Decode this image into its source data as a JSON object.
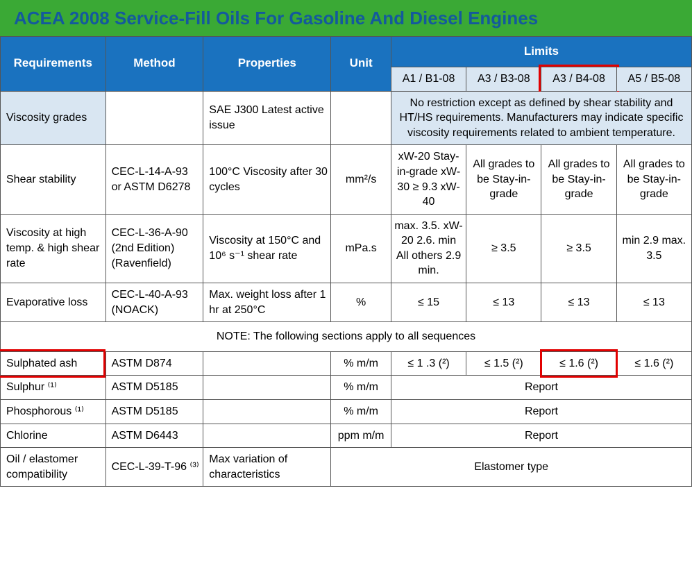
{
  "colors": {
    "title_bg": "#3aa935",
    "title_text": "#145a9c",
    "header_bg": "#1a72bf",
    "sub_bg": "#d9e6f2",
    "body_bg": "#ffffff",
    "highlight": "#e20000"
  },
  "title": "ACEA 2008 Service-Fill Oils For Gasoline And Diesel Engines",
  "columns": {
    "requirements": "Requirements",
    "method": "Method",
    "properties": "Properties",
    "unit": "Unit",
    "limits": "Limits"
  },
  "sub": {
    "a1b1": "A1 / B1-08",
    "a3b3": "A3 / B3-08",
    "a3b4": "A3 / B4-08",
    "a5b5": "A5 / B5-08"
  },
  "rows": {
    "viscosity_grades": {
      "req": "Viscosity grades",
      "method": "",
      "prop": "SAE J300 Latest active issue",
      "unit": "",
      "span": "No restriction except as defined by shear stability and HT/HS requirements. Manufacturers may indicate specific viscosity requirements related to ambient temperature."
    },
    "shear_stability": {
      "req": "Shear stability",
      "method": "CEC-L-14-A-93 or ASTM D6278",
      "prop": "100°C Viscosity after 30 cycles",
      "unit": "mm²/s",
      "l1": "xW-20 Stay-in-grade xW-30 ≥ 9.3 xW-40",
      "l2": "All grades to be Stay-in-grade",
      "l3": "All grades to be Stay-in-grade",
      "l4": "All grades to be Stay-in-grade"
    },
    "viscosity_high": {
      "req": "Viscosity at high temp. & high shear rate",
      "method": "CEC-L-36-A-90 (2nd Edition) (Ravenfield)",
      "prop": "Viscosity at 150°C and 10⁶ s⁻¹ shear rate",
      "unit": "mPa.s",
      "l1": "max. 3.5. xW-20 2.6. min All others 2.9 min.",
      "l2": "≥ 3.5",
      "l3": "≥ 3.5",
      "l4": "min 2.9 max. 3.5"
    },
    "evap_loss": {
      "req": "Evaporative loss",
      "method": "CEC-L-40-A-93 (NOACK)",
      "prop": "Max. weight loss after 1 hr at 250°C",
      "unit": "%",
      "l1": "≤ 15",
      "l2": "≤ 13",
      "l3": "≤ 13",
      "l4": "≤ 13"
    },
    "note": "NOTE: The following sections apply to all sequences",
    "sulphated_ash": {
      "req": "Sulphated ash",
      "method": "ASTM D874",
      "prop": "",
      "unit": "% m/m",
      "l1": "≤ 1 .3 (²)",
      "l2": "≤ 1.5 (²)",
      "l3": "≤ 1.6 (²)",
      "l4": "≤ 1.6 (²)"
    },
    "sulphur": {
      "req": "Sulphur ⁽¹⁾",
      "method": "ASTM D5185",
      "prop": "",
      "unit": "% m/m",
      "span": "Report"
    },
    "phosphorous": {
      "req": "Phosphorous ⁽¹⁾",
      "method": "ASTM D5185",
      "prop": "",
      "unit": "% m/m",
      "span": "Report"
    },
    "chlorine": {
      "req": "Chlorine",
      "method": "ASTM D6443",
      "prop": "",
      "unit": "ppm m/m",
      "span": "Report"
    },
    "elastomer": {
      "req": "Oil / elastomer compatibility",
      "method": "CEC-L-39-T-96 ⁽³⁾",
      "prop": "Max variation of characteristics",
      "span": "Elastomer type"
    }
  },
  "col_widths": [
    "140",
    "130",
    "170",
    "80",
    "100",
    "100",
    "100",
    "100"
  ]
}
